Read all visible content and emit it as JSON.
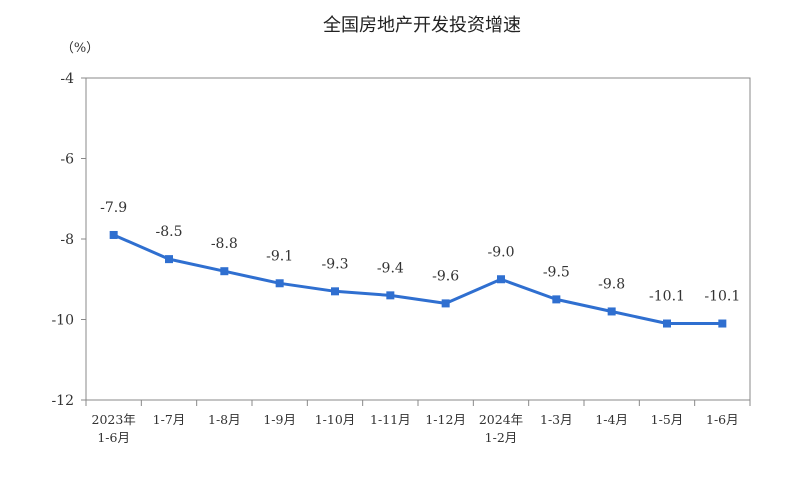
{
  "chart_data": {
    "type": "line",
    "title": "全国房地产开发投资增速",
    "unit_label": "（%）",
    "ylim": [
      -12,
      -4
    ],
    "yticks": [
      -4,
      -6,
      -8,
      -10,
      -12
    ],
    "grid": false,
    "categories": [
      [
        "2023年",
        "1-6月"
      ],
      [
        "1-7月"
      ],
      [
        "1-8月"
      ],
      [
        "1-9月"
      ],
      [
        "1-10月"
      ],
      [
        "1-11月"
      ],
      [
        "1-12月"
      ],
      [
        "2024年",
        "1-2月"
      ],
      [
        "1-3月"
      ],
      [
        "1-4月"
      ],
      [
        "1-5月"
      ],
      [
        "1-6月"
      ]
    ],
    "values": [
      -7.9,
      -8.5,
      -8.8,
      -9.1,
      -9.3,
      -9.4,
      -9.6,
      -9.0,
      -9.5,
      -9.8,
      -10.1,
      -10.1
    ],
    "data_labels": [
      "-7.9",
      "-8.5",
      "-8.8",
      "-9.1",
      "-9.3",
      "-9.4",
      "-9.6",
      "-9.0",
      "-9.5",
      "-9.8",
      "-10.1",
      "-10.1"
    ],
    "line_color": "#2f6fd0"
  }
}
